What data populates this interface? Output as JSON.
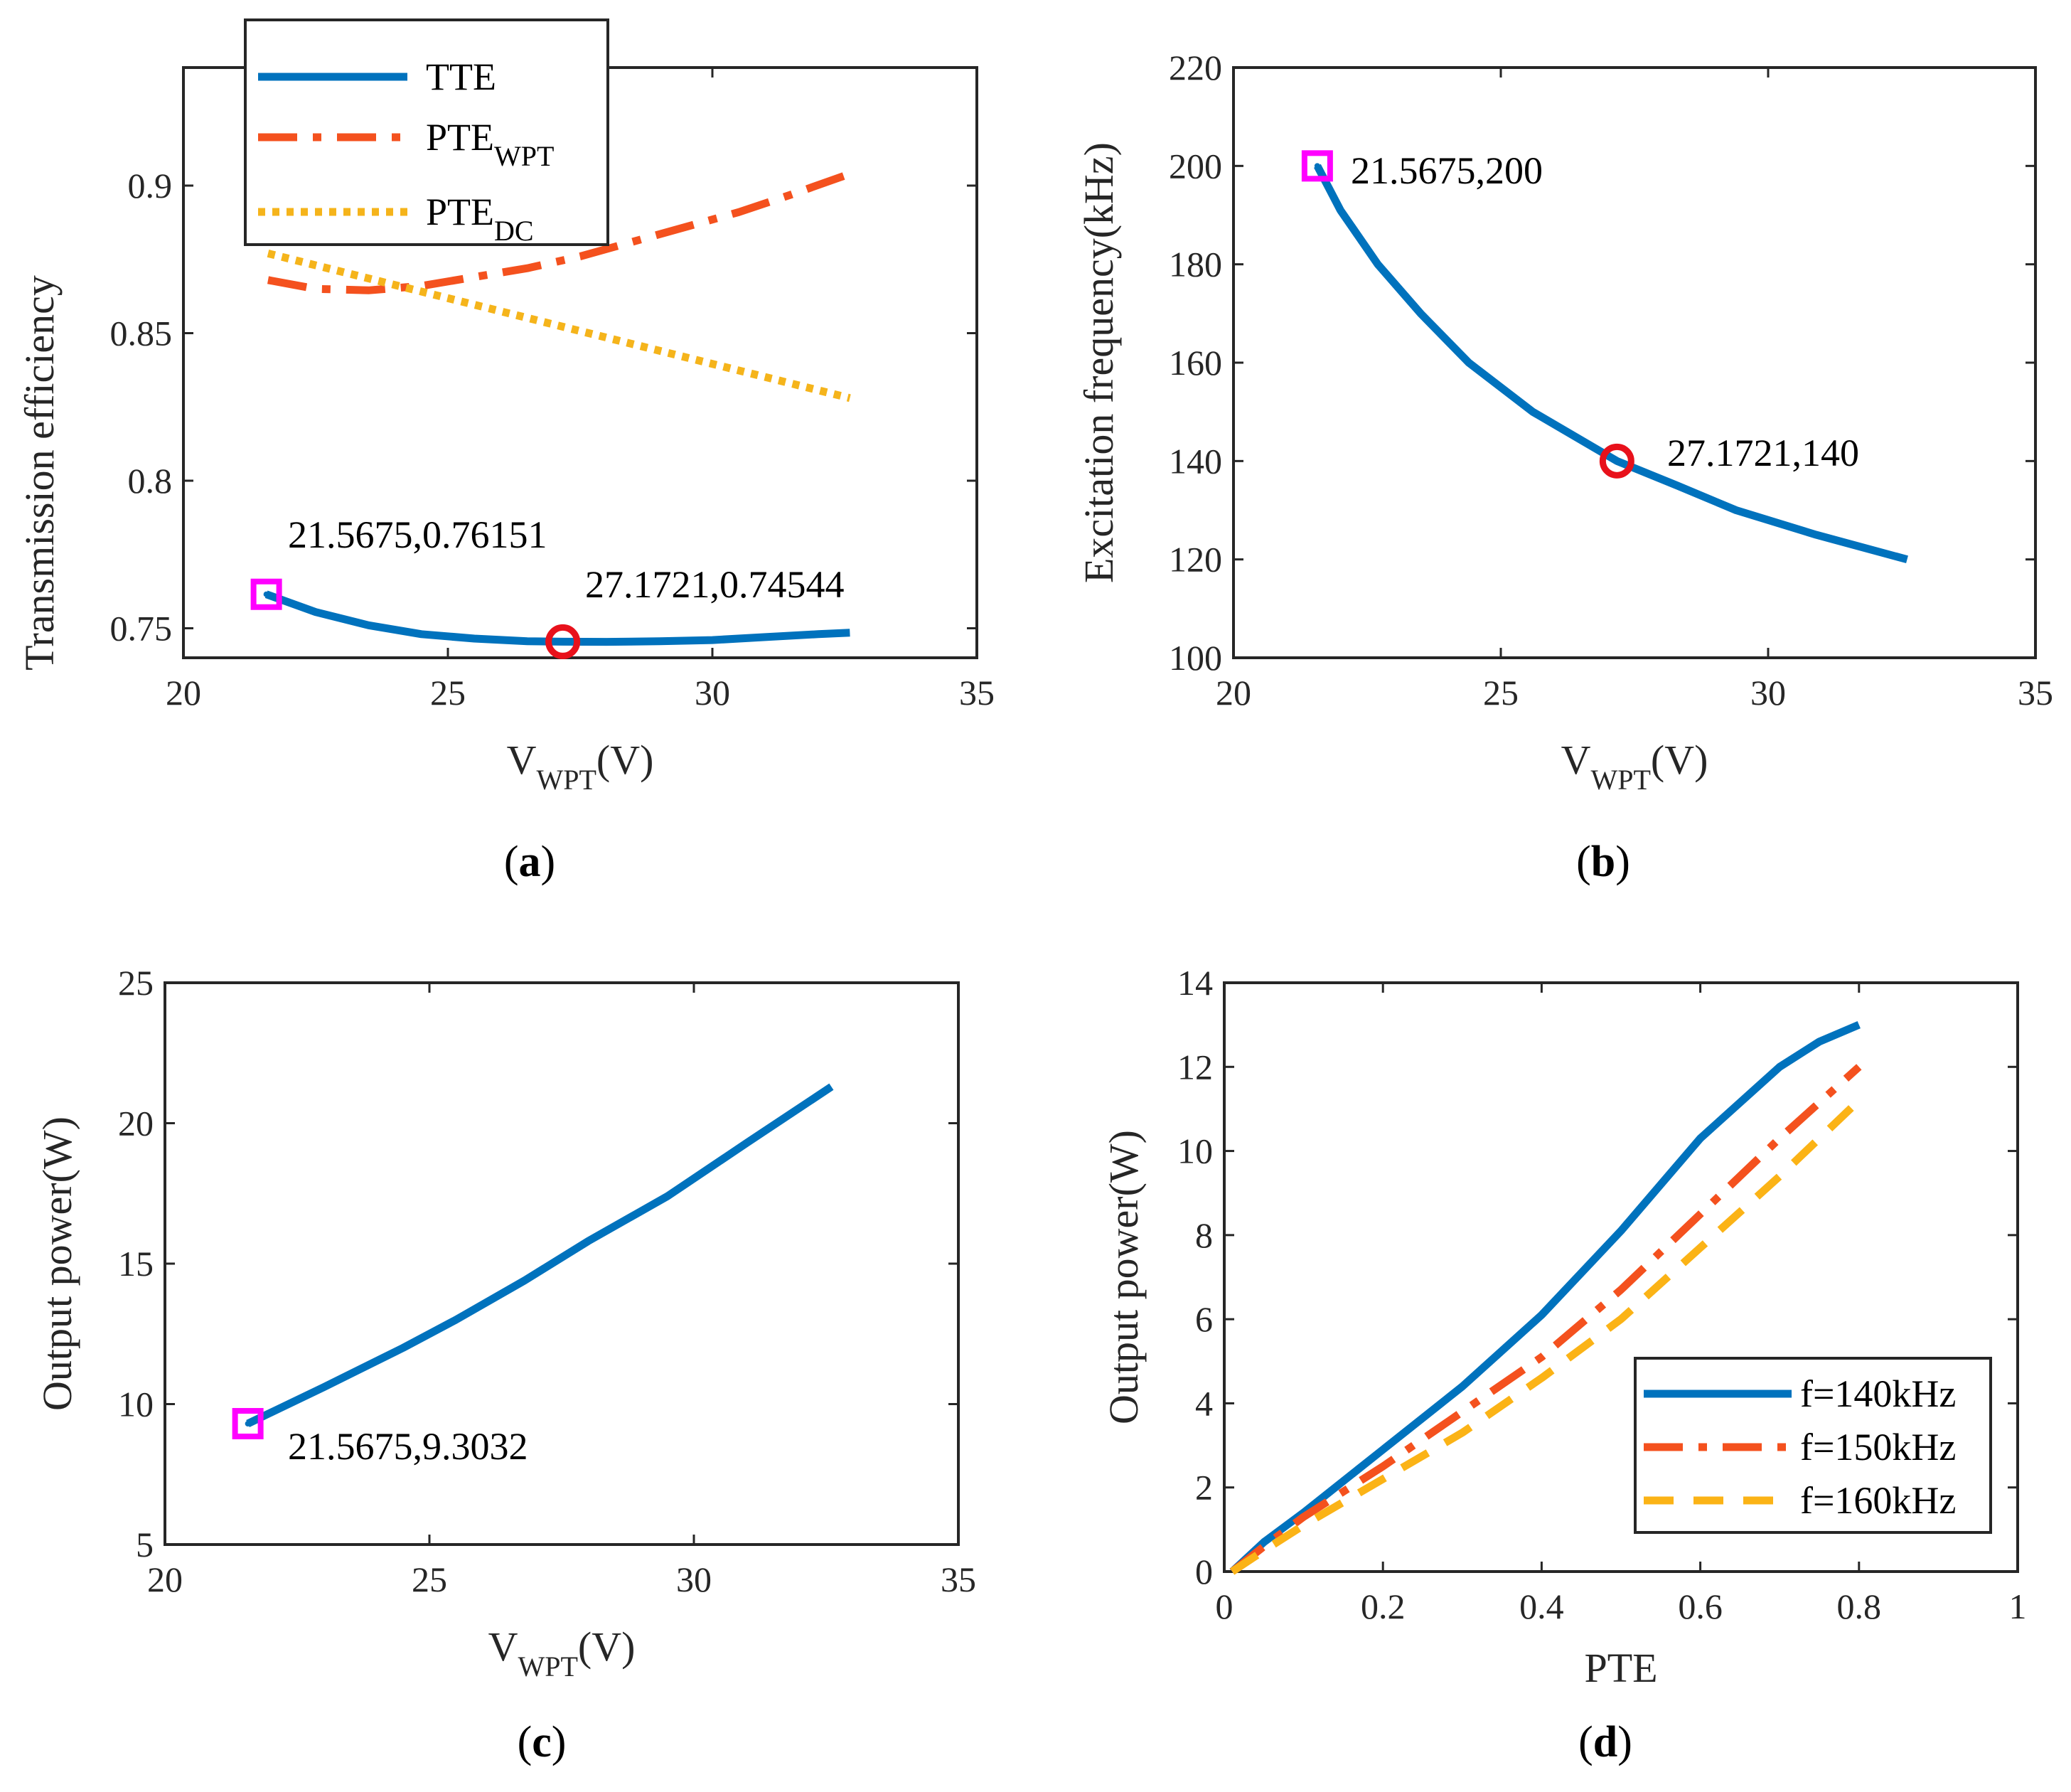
{
  "colors": {
    "blue": "#0072bd",
    "orange": "#f4511e",
    "yellow": "#f5b41b",
    "yellow_dashed": "#fbb316",
    "magenta": "#ff00ff",
    "red": "#e8111b",
    "axis": "#262626"
  },
  "chart_data": [
    {
      "id": "a",
      "caption": "(a)",
      "type": "line",
      "xlabel": {
        "main": "V",
        "sub": "WPT",
        "tail": "(V)"
      },
      "ylabel": "Transmission efficiency",
      "xlim": [
        20,
        35
      ],
      "ylim": [
        0.74,
        0.94
      ],
      "xticks": [
        20,
        25,
        30,
        35
      ],
      "yticks": [
        0.75,
        0.8,
        0.85,
        0.9
      ],
      "ytick_labels": [
        "0.75",
        "0.8",
        "0.85",
        "0.9"
      ],
      "legend": {
        "placement": "top-left",
        "entries": [
          {
            "main": "TTE",
            "sub": ""
          },
          {
            "main": "PTE",
            "sub": "WPT"
          },
          {
            "main": "PTE",
            "sub": "DC"
          }
        ]
      },
      "series": [
        {
          "name": "TTE",
          "color": "blue",
          "style": "solid",
          "x": [
            21.5675,
            22.5,
            23.5,
            24.5,
            25.5,
            26.5,
            27.1721,
            28,
            29,
            30,
            31,
            32,
            32.6
          ],
          "y": [
            0.76151,
            0.7555,
            0.751,
            0.748,
            0.7465,
            0.7456,
            0.74544,
            0.7454,
            0.7456,
            0.746,
            0.747,
            0.748,
            0.7485
          ]
        },
        {
          "name": "PTE_WPT",
          "color": "orange",
          "style": "dashdot",
          "x": [
            21.6,
            22.5,
            23.5,
            24.5,
            25.5,
            26.5,
            27.5,
            28.5,
            29.5,
            30.5,
            31.5,
            32.6
          ],
          "y": [
            0.868,
            0.865,
            0.8645,
            0.866,
            0.869,
            0.872,
            0.876,
            0.881,
            0.886,
            0.891,
            0.897,
            0.904
          ]
        },
        {
          "name": "PTE_DC",
          "color": "yellow",
          "style": "dotted",
          "x": [
            21.6,
            32.6
          ],
          "y": [
            0.877,
            0.828
          ]
        }
      ],
      "markers": [
        {
          "type": "square",
          "x": 21.5675,
          "y": 0.76151,
          "color": "magenta",
          "label": "21.5675,0.76151"
        },
        {
          "type": "circle",
          "x": 27.1721,
          "y": 0.74544,
          "color": "red",
          "label": "27.1721,0.74544"
        }
      ]
    },
    {
      "id": "b",
      "caption": "(b)",
      "type": "line",
      "xlabel": {
        "main": "V",
        "sub": "WPT",
        "tail": "(V)"
      },
      "ylabel": "Excitation frequency(kHz)",
      "xlim": [
        20,
        35
      ],
      "ylim": [
        100,
        220
      ],
      "xticks": [
        20,
        25,
        30,
        35
      ],
      "yticks": [
        100,
        120,
        140,
        160,
        180,
        200,
        220
      ],
      "ytick_labels": [
        "100",
        "120",
        "140",
        "160",
        "180",
        "200",
        "220"
      ],
      "series": [
        {
          "name": "frequency",
          "color": "blue",
          "style": "solid",
          "x": [
            21.5675,
            22,
            22.7,
            23.5,
            24.4,
            25.6,
            27.1721,
            28.3,
            29.4,
            30.9,
            32.6
          ],
          "y": [
            200,
            191,
            180,
            170,
            160,
            150,
            140,
            135,
            130,
            125,
            120
          ]
        }
      ],
      "markers": [
        {
          "type": "square",
          "x": 21.5675,
          "y": 200,
          "color": "magenta",
          "label": "21.5675,200"
        },
        {
          "type": "circle",
          "x": 27.1721,
          "y": 140,
          "color": "red",
          "label": "27.1721,140"
        }
      ]
    },
    {
      "id": "c",
      "caption": "(c)",
      "type": "line",
      "xlabel": {
        "main": "V",
        "sub": "WPT",
        "tail": "(V)"
      },
      "ylabel": "Output power(W)",
      "xlim": [
        20,
        35
      ],
      "ylim": [
        5,
        25
      ],
      "xticks": [
        20,
        25,
        30,
        35
      ],
      "yticks": [
        5,
        10,
        15,
        20,
        25
      ],
      "ytick_labels": [
        "5",
        "10",
        "15",
        "20",
        "25"
      ],
      "series": [
        {
          "name": "power",
          "color": "blue",
          "style": "solid",
          "x": [
            21.5675,
            23,
            24.5,
            25.5,
            26.8,
            28,
            29.5,
            31,
            32.6
          ],
          "y": [
            9.3032,
            10.6,
            12,
            13,
            14.4,
            15.8,
            17.4,
            19.3,
            21.3
          ]
        }
      ],
      "markers": [
        {
          "type": "square",
          "x": 21.5675,
          "y": 9.3032,
          "color": "magenta",
          "label": "21.5675,9.3032"
        }
      ]
    },
    {
      "id": "d",
      "caption": "(d)",
      "type": "line",
      "xlabel": {
        "main": "PTE",
        "sub": "",
        "tail": ""
      },
      "ylabel": "Output power(W)",
      "xlim": [
        0,
        1
      ],
      "ylim": [
        0,
        14
      ],
      "xticks": [
        0,
        0.2,
        0.4,
        0.6,
        0.8,
        1
      ],
      "xtick_labels": [
        "0",
        "0.2",
        "0.4",
        "0.6",
        "0.8",
        "1"
      ],
      "yticks": [
        0,
        2,
        4,
        6,
        8,
        10,
        12,
        14
      ],
      "ytick_labels": [
        "0",
        "2",
        "4",
        "6",
        "8",
        "10",
        "12",
        "14"
      ],
      "legend": {
        "placement": "bottom-right",
        "entries": [
          {
            "main": "f=140kHz",
            "sub": ""
          },
          {
            "main": "f=150kHz",
            "sub": ""
          },
          {
            "main": "f=160kHz",
            "sub": ""
          }
        ]
      },
      "series": [
        {
          "name": "f=140kHz",
          "color": "blue",
          "style": "solid",
          "x": [
            0.01,
            0.05,
            0.1,
            0.2,
            0.3,
            0.4,
            0.5,
            0.6,
            0.7,
            0.75,
            0.8
          ],
          "y": [
            0,
            0.7,
            1.4,
            2.9,
            4.4,
            6.1,
            8.1,
            10.3,
            12.0,
            12.6,
            13.0
          ]
        },
        {
          "name": "f=150kHz",
          "color": "orange",
          "style": "dashdot",
          "x": [
            0.01,
            0.05,
            0.1,
            0.2,
            0.3,
            0.4,
            0.5,
            0.6,
            0.7,
            0.8
          ],
          "y": [
            0,
            0.6,
            1.3,
            2.5,
            3.8,
            5.1,
            6.7,
            8.5,
            10.3,
            12.0
          ]
        },
        {
          "name": "f=160kHz",
          "color": "yellow_dashed",
          "style": "dashed",
          "x": [
            0.01,
            0.05,
            0.1,
            0.2,
            0.3,
            0.4,
            0.5,
            0.6,
            0.7,
            0.8
          ],
          "y": [
            0,
            0.5,
            1.1,
            2.2,
            3.3,
            4.6,
            6.0,
            7.7,
            9.4,
            11.2
          ]
        }
      ],
      "markers": []
    }
  ]
}
